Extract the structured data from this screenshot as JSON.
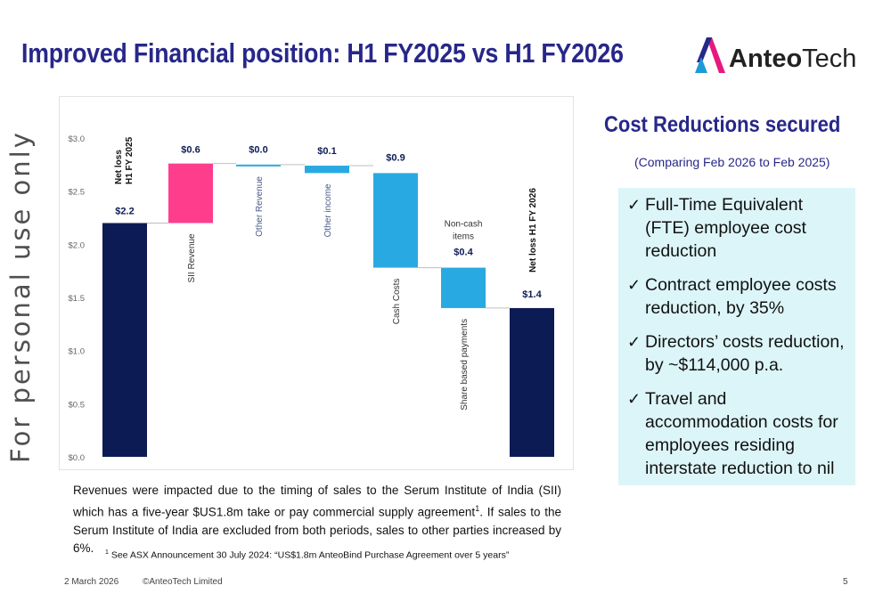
{
  "title": "Improved Financial position: H1 FY2025 vs H1 FY2026",
  "logo": {
    "text_bold": "Anteo",
    "text_regular": "Tech",
    "colors": [
      "#e6197e",
      "#1e9ad6",
      "#27278a"
    ]
  },
  "vertical_note": "For personal use only",
  "chart_data": {
    "type": "bar",
    "subtype": "waterfall",
    "categories": [
      "Net loss H1 FY 2025",
      "SII Revenue",
      "Other Revenue",
      "Other income",
      "Cash Costs",
      "Share based payments",
      "Net loss H1 FY 2026"
    ],
    "values": [
      2.2,
      0.6,
      0.0,
      0.1,
      0.9,
      0.4,
      1.4
    ],
    "bar_ranges": [
      [
        0,
        2.2
      ],
      [
        2.2,
        2.76
      ],
      [
        2.74,
        2.75
      ],
      [
        2.67,
        2.74
      ],
      [
        1.78,
        2.67
      ],
      [
        1.4,
        1.78
      ],
      [
        0,
        1.4
      ]
    ],
    "data_labels": [
      "$2.2",
      "$0.6",
      "$0.0",
      "$0.1",
      "$0.9",
      "$0.4",
      "$1.4"
    ],
    "annotation": "Non-cash items",
    "yticks": [
      "$3.0",
      "$2.5",
      "$2.0",
      "$1.5",
      "$1.0",
      "$0.5",
      "$0.0"
    ],
    "ylim": [
      0,
      3.0
    ],
    "colors": [
      "#0d1b55",
      "#ff3d8d",
      "#29a9e1",
      "#29a9e1",
      "#29a9e1",
      "#29a9e1",
      "#0d1b55"
    ],
    "title": "",
    "xlabel": "",
    "ylabel": ""
  },
  "cost": {
    "title": "Cost Reductions secured",
    "subtitle": "(Comparing Feb 2026 to Feb 2025)",
    "items": [
      "Full-Time Equivalent (FTE) employee cost reduction",
      "Contract employee costs reduction, by 35%",
      "Directors’ costs reduction, by ~$114,000 p.a.",
      "Travel and accommodation costs for employees residing interstate reduction to nil"
    ]
  },
  "note": {
    "text_a": "Revenues were impacted due to the timing of sales to the Serum Institute of India (SII) which has a five-year $US1.8m take or pay commercial supply agreement",
    "sup": "1",
    "text_b": ". If sales to the Serum Institute of India are excluded from both periods, sales to other parties increased by 6%."
  },
  "footnote": {
    "sup": "1",
    "text": " See ASX Announcement 30 July 2024: “US$1.8m AnteoBind Purchase Agreement over 5 years”"
  },
  "footer": {
    "date": "2 March 2026",
    "copyright": "©AnteoTech Limited",
    "page": "5"
  }
}
